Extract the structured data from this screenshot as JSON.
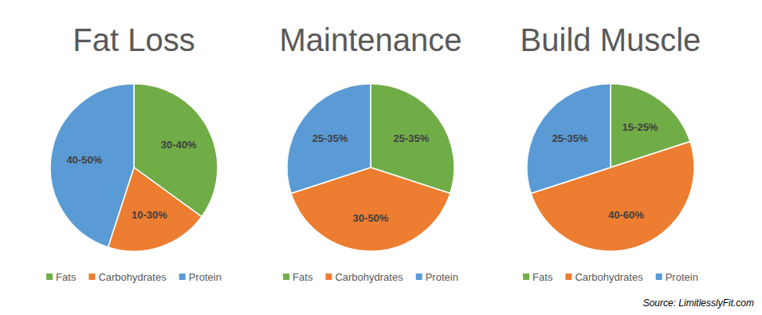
{
  "chart_data": [
    {
      "type": "pie",
      "title": "Fat Loss",
      "categories": [
        "Fats",
        "Carbohydrates",
        "Protein"
      ],
      "values": [
        35,
        20,
        45
      ],
      "value_labels": [
        "30-40%",
        "10-30%",
        "40-50%"
      ],
      "colors": [
        "#70ad47",
        "#ed7d31",
        "#5b9bd5"
      ],
      "data_labels": true,
      "legend": "bottom"
    },
    {
      "type": "pie",
      "title": "Maintenance",
      "categories": [
        "Fats",
        "Carbohydrates",
        "Protein"
      ],
      "values": [
        30,
        40,
        30
      ],
      "value_labels": [
        "25-35%",
        "30-50%",
        "25-35%"
      ],
      "colors": [
        "#70ad47",
        "#ed7d31",
        "#5b9bd5"
      ],
      "data_labels": true,
      "legend": "bottom"
    },
    {
      "type": "pie",
      "title": "Build Muscle",
      "categories": [
        "Fats",
        "Carbohydrates",
        "Protein"
      ],
      "values": [
        20,
        50,
        30
      ],
      "value_labels": [
        "15-25%",
        "40-60%",
        "25-35%"
      ],
      "colors": [
        "#70ad47",
        "#ed7d31",
        "#5b9bd5"
      ],
      "data_labels": true,
      "legend": "bottom"
    }
  ],
  "source": "Source: LimitlesslyFit.com"
}
